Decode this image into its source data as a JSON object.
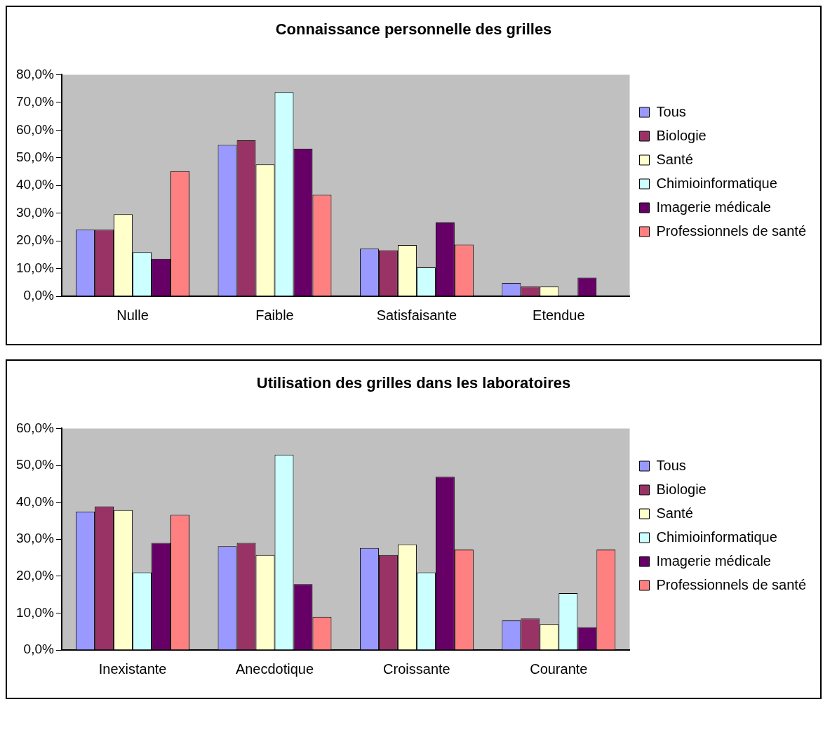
{
  "chart_data": [
    {
      "type": "bar",
      "title": "Connaissance personnelle des grilles",
      "categories": [
        "Nulle",
        "Faible",
        "Satisfaisante",
        "Etendue"
      ],
      "ylim": [
        0,
        80
      ],
      "yticks": [
        {
          "value": 0,
          "label": "0,0%"
        },
        {
          "value": 10,
          "label": "10,0%"
        },
        {
          "value": 20,
          "label": "20,0%"
        },
        {
          "value": 30,
          "label": "30,0%"
        },
        {
          "value": 40,
          "label": "40,0%"
        },
        {
          "value": 50,
          "label": "50,0%"
        },
        {
          "value": 60,
          "label": "60,0%"
        },
        {
          "value": 70,
          "label": "70,0%"
        },
        {
          "value": 80,
          "label": "80,0%"
        }
      ],
      "grid": false,
      "legend": "right",
      "series": [
        {
          "name": "Tous",
          "color": "#9999ff",
          "values": [
            24.0,
            54.6,
            17.2,
            4.8
          ]
        },
        {
          "name": "Biologie",
          "color": "#993366",
          "values": [
            24.0,
            56.3,
            16.6,
            3.5
          ]
        },
        {
          "name": "Santé",
          "color": "#ffffcc",
          "values": [
            29.6,
            47.6,
            18.5,
            3.5
          ]
        },
        {
          "name": "Chimioinformatique",
          "color": "#ccffff",
          "values": [
            15.9,
            73.7,
            10.4,
            0
          ]
        },
        {
          "name": "Imagerie médicale",
          "color": "#660066",
          "values": [
            13.5,
            53.3,
            26.6,
            6.7
          ]
        },
        {
          "name": "Professionnels de santé",
          "color": "#ff8080",
          "values": [
            45.2,
            36.6,
            18.6,
            0
          ]
        }
      ]
    },
    {
      "type": "bar",
      "title": "Utilisation des grilles dans les laboratoires",
      "categories": [
        "Inexistante",
        "Anecdotique",
        "Croissante",
        "Courante"
      ],
      "ylim": [
        0,
        60
      ],
      "yticks": [
        {
          "value": 0,
          "label": "0,0%"
        },
        {
          "value": 10,
          "label": "10,0%"
        },
        {
          "value": 20,
          "label": "20,0%"
        },
        {
          "value": 30,
          "label": "30,0%"
        },
        {
          "value": 40,
          "label": "40,0%"
        },
        {
          "value": 50,
          "label": "50,0%"
        },
        {
          "value": 60,
          "label": "60,0%"
        }
      ],
      "grid": false,
      "legend": "right",
      "series": [
        {
          "name": "Tous",
          "color": "#9999ff",
          "values": [
            37.5,
            28.1,
            27.6,
            8.0
          ]
        },
        {
          "name": "Biologie",
          "color": "#993366",
          "values": [
            38.9,
            29.0,
            25.7,
            8.5
          ]
        },
        {
          "name": "Santé",
          "color": "#ffffcc",
          "values": [
            37.9,
            25.7,
            28.6,
            7.0
          ]
        },
        {
          "name": "Chimioinformatique",
          "color": "#ccffff",
          "values": [
            21.0,
            52.9,
            21.0,
            15.4
          ]
        },
        {
          "name": "Imagerie médicale",
          "color": "#660066",
          "values": [
            29.0,
            17.8,
            46.9,
            6.2
          ]
        },
        {
          "name": "Professionnels de santé",
          "color": "#ff8080",
          "values": [
            36.6,
            9.0,
            27.2,
            27.2
          ]
        }
      ]
    }
  ]
}
